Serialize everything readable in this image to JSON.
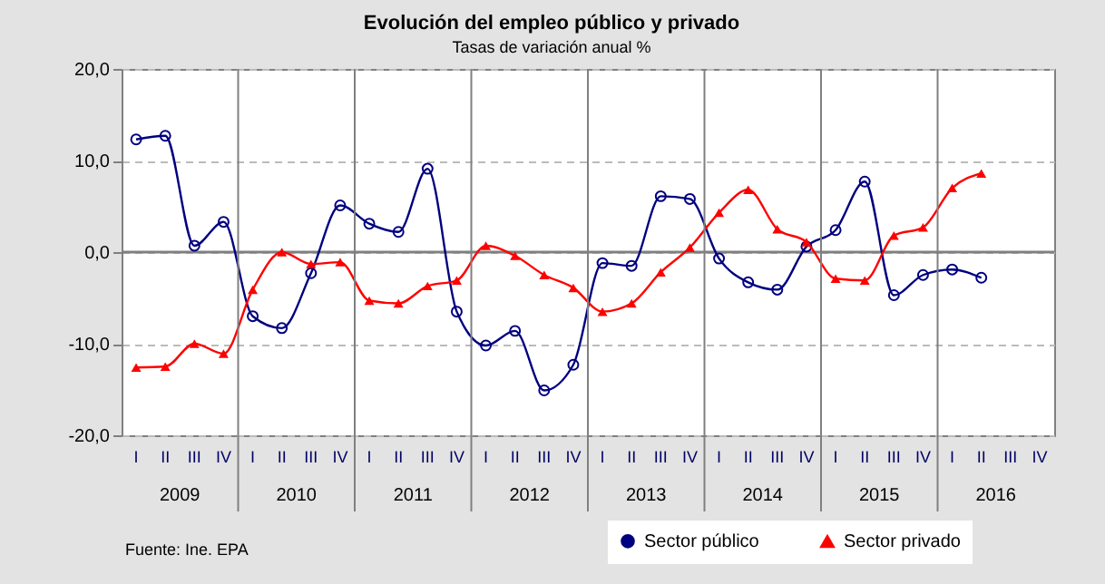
{
  "chart_data": {
    "type": "line",
    "title": "Evolución del empleo público y privado",
    "subtitle": "Tasas de variación anual  %",
    "categories": [
      "I",
      "II",
      "III",
      "IV",
      "I",
      "II",
      "III",
      "IV",
      "I",
      "II",
      "III",
      "IV",
      "I",
      "II",
      "III",
      "IV",
      "I",
      "II",
      "III",
      "IV",
      "I",
      "II",
      "III",
      "IV",
      "I",
      "II",
      "III",
      "IV",
      "I",
      "II",
      "III",
      "IV"
    ],
    "annotations": [
      "Fuente: Ine. EPA",
      "2009",
      "2010",
      "2011",
      "2012",
      "2013",
      "2014",
      "2015",
      "2016"
    ],
    "series": [
      {
        "name": "Sector público",
        "color": "#000080",
        "marker": "circle",
        "values": [
          12.3,
          12.7,
          0.7,
          3.3,
          -7.0,
          -8.3,
          -2.3,
          5.1,
          3.1,
          2.2,
          9.1,
          -6.5,
          -10.2,
          -8.6,
          -15.1,
          -12.3,
          -1.2,
          -1.5,
          6.1,
          5.8,
          -0.7,
          -3.3,
          -4.1,
          0.6,
          2.4,
          7.7,
          -4.7,
          -2.5,
          -1.9,
          -2.8,
          null,
          null
        ]
      },
      {
        "name": "Sector privado",
        "color": "#ff0000",
        "marker": "triangle",
        "values": [
          -12.6,
          -12.5,
          -10.0,
          -11.1,
          -4.1,
          0.0,
          -1.3,
          -1.1,
          -5.3,
          -5.6,
          -3.7,
          -3.1,
          0.7,
          -0.4,
          -2.5,
          -3.9,
          -6.5,
          -5.6,
          -2.2,
          0.5,
          4.3,
          6.8,
          2.5,
          1.1,
          -2.9,
          -3.1,
          1.8,
          2.7,
          7.0,
          8.6,
          null,
          null
        ]
      }
    ],
    "ylim": [
      -20,
      20
    ],
    "yticks": [
      {
        "value": -20,
        "label": "-20,0"
      },
      {
        "value": -10,
        "label": "-10,0"
      },
      {
        "value": 0,
        "label": "0,0"
      },
      {
        "value": 10,
        "label": "10,0"
      },
      {
        "value": 20,
        "label": "20,0"
      }
    ],
    "grid": "y",
    "ref_lines": [
      {
        "axis": "y",
        "value": 0,
        "label": null,
        "color": "#808080",
        "line_style": "solid"
      }
    ],
    "legend": "bottom right",
    "line_style": "solid"
  }
}
